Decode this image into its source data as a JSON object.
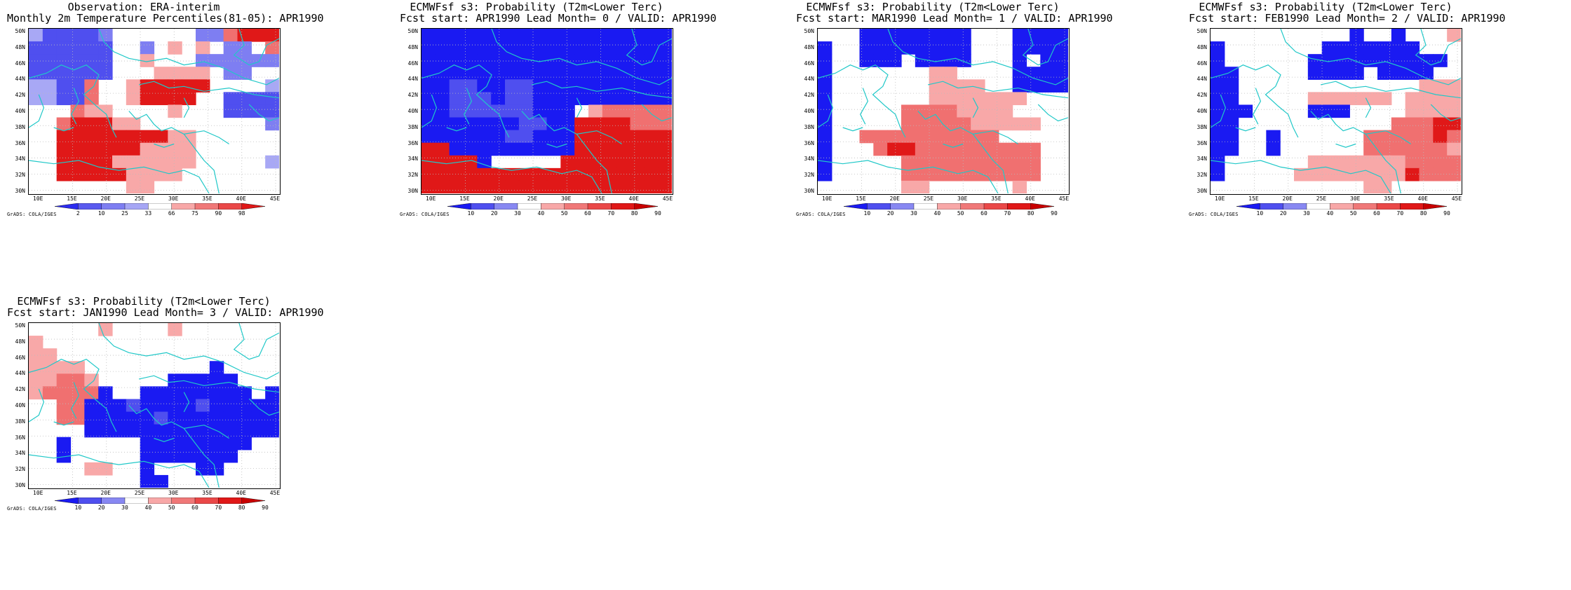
{
  "panels": [
    {
      "id": "obs",
      "title_lines": [
        "Observation: ERA-interim",
        "Monthly 2m Temperature Percentiles(81-05): APR1990"
      ],
      "colorbar_labels": [
        "2",
        "10",
        "25",
        "33",
        "66",
        "75",
        "90",
        "98"
      ],
      "colorbar_colors": [
        "#2b2bf0",
        "#5a5aef",
        "#7e7ef2",
        "#a6a6f5",
        "#ffffff",
        "#f8a8a8",
        "#f07878",
        "#ea4848",
        "#e01818"
      ],
      "grid": [
        "cbbbbw......wwrRRR",
        "bbbbbb..w.p.p.ww.r",
        "bbbbbb..p...wwwwww",
        "bbbbbb...pppp.ww..",
        "ccbbr..pRRRRR....c",
        "ccbbr..pRRRR..bbbb",
        "...rpp....p...bbbb",
        "..rRRRpp.........w",
        "..RRRRRRRRpp......",
        "..RRRRRRpppp......",
        "..RRRRpppppp.....c",
        "..RRRRRpppp.......",
        ".......pp........."
      ]
    },
    {
      "id": "lead0",
      "title_lines": [
        "ECMWFsf s3: Probability (T2m<Lower Terc)",
        "Fcst start: APR1990  Lead Month= 0 / VALID: APR1990"
      ],
      "colorbar_labels": [
        "10",
        "20",
        "30",
        "40",
        "50",
        "60",
        "70",
        "80",
        "90"
      ],
      "colorbar_colors": [
        "#1a1af2",
        "#4f4fef",
        "#8888f2",
        "#ffffff",
        "#f8a8a8",
        "#f07878",
        "#ea4848",
        "#e01818",
        "#c80000"
      ],
      "grid": [
        "BBBBBBBBBBBBBBBBBB",
        "BBBBBBBBBBBBBBBBBB",
        "BBBBBBBBBBBBBBBBBB",
        "BBBBBBBBBBBBBBBBBB",
        "BBbbBBbbBBBBBBBBBB",
        "BBbbbBbbBBBBBBBBBB",
        "BBbbbbbbBBB.prrrrr",
        "BBBBBBBbbBBRRRRrrr",
        "BBBBBBbbBBBRRRRRRR",
        "RRBBBBBBBBBRRRRRRR",
        "RRRRB.....RRRRRRRR",
        "RRRRRRRRRRRRRRRRRR",
        "RRRRRRRRRRRRRRRRRR"
      ]
    },
    {
      "id": "lead1",
      "title_lines": [
        "ECMWFsf s3: Probability (T2m<Lower Terc)",
        "Fcst start: MAR1990  Lead Month= 1 / VALID: APR1990"
      ],
      "colorbar_labels": [
        "10",
        "20",
        "30",
        "40",
        "50",
        "60",
        "70",
        "80",
        "90"
      ],
      "colorbar_colors": [
        "#1a1af2",
        "#4f4fef",
        "#8888f2",
        "#ffffff",
        "#f8a8a8",
        "#f07878",
        "#ea4848",
        "#e01818",
        "#c80000"
      ],
      "grid": [
        "...BBBBBBBB...BBBB",
        "B..BBBBBBBB...BBBB",
        "B..BBB.BBBB...B.BB",
        "B.......pp....BBBB",
        "B.......pppp..BBBB",
        "B.......ppppppp...",
        "B.....rrrrpppp....",
        "B.....rrrrrppppp..",
        "B..rrrrrrrrrr.....",
        "B...rRRrrrrrrrrr..",
        "B.....rrrrrrrrrr..",
        "B.....rrrrrrrrrr..",
        "......pp......p..."
      ]
    },
    {
      "id": "lead2",
      "title_lines": [
        "ECMWFsf s3: Probability (T2m<Lower Terc)",
        "Fcst start: FEB1990  Lead Month= 2 / VALID: APR1990"
      ],
      "colorbar_labels": [
        "10",
        "20",
        "30",
        "40",
        "50",
        "60",
        "70",
        "80",
        "90"
      ],
      "colorbar_colors": [
        "#1a1af2",
        "#4f4fef",
        "#8888f2",
        "#ffffff",
        "#f8a8a8",
        "#f07878",
        "#ea4848",
        "#e01818",
        "#c80000"
      ],
      "grid": [
        "..........B..B...p",
        "B.......BBBBBBB...",
        "B......BBBBBBBBBB.",
        "BB.....BBBB.BBBB..",
        "BB.............ppp",
        "BB.....pppppp.pppp",
        "BBB....BBB....ppppr",
        "BB...........rrrRR",
        "BB..B......rrrrrRr",
        "BB..B......rrrrrrp",
        "B......ppppppprrrrp",
        "B.....ppppppppRrrrp",
        "...........pp....."
      ]
    },
    {
      "id": "lead3",
      "title_lines": [
        "ECMWFsf s3: Probability (T2m<Lower Terc)",
        "Fcst start: JAN1990  Lead Month= 3 / VALID: APR1990"
      ],
      "colorbar_labels": [
        "10",
        "20",
        "30",
        "40",
        "50",
        "60",
        "70",
        "80",
        "90"
      ],
      "colorbar_colors": [
        "#1a1af2",
        "#4f4fef",
        "#8888f2",
        "#ffffff",
        "#f8a8a8",
        "#f07878",
        "#ea4848",
        "#e01818",
        "#c80000"
      ],
      "grid": [
        ".....p....p.......",
        "p.................",
        "pp................",
        "pppp.........B....",
        "pprrp.....BBBBB...",
        "prrrrB..BBBBBBBB.B",
        "..rrBBBbBBBBbBBBBB",
        "..rrBBBBBbBBBBBBBB",
        "....BBBBBBBBBBBBBB",
        "..B.....BBBBBBBB..",
        "..B.....BBBBBBB...",
        "....pp..B...BB....",
        "........BB........"
      ]
    }
  ],
  "lat_labels": [
    "50N",
    "48N",
    "46N",
    "44N",
    "42N",
    "40N",
    "38N",
    "36N",
    "34N",
    "32N",
    "30N"
  ],
  "lon_labels": [
    "10E",
    "15E",
    "20E",
    "25E",
    "30E",
    "35E",
    "40E",
    "45E"
  ],
  "grads_label": "GrADS: COLA/IGES",
  "colors": {
    "R": "#e01818",
    "r": "#f07070",
    "p": "#f8a8a8",
    "B": "#1a1af2",
    "b": "#4f4fef",
    "c": "#a8a8f5",
    "w": "#7e7ef2",
    "coast": "#20c8c8",
    "gridline": "#bbbbbb"
  }
}
